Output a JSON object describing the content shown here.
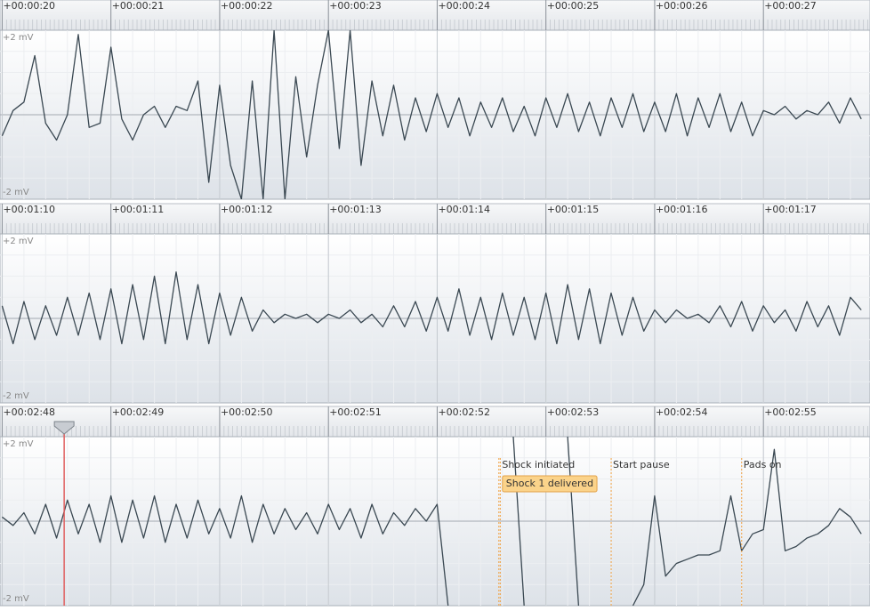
{
  "chart_data": [
    {
      "type": "line",
      "color": "#3a4852",
      "xlim": [
        19.98,
        27.98
      ],
      "ylim": [
        -2,
        2
      ],
      "xticks": [
        {
          "value": 20,
          "label": "+00:00:20"
        },
        {
          "value": 21,
          "label": "+00:00:21"
        },
        {
          "value": 22,
          "label": "+00:00:22"
        },
        {
          "value": 23,
          "label": "+00:00:23"
        },
        {
          "value": 24,
          "label": "+00:00:24"
        },
        {
          "value": 25,
          "label": "+00:00:25"
        },
        {
          "value": 26,
          "label": "+00:00:26"
        },
        {
          "value": 27,
          "label": "+00:00:27"
        }
      ],
      "yticks": [
        {
          "value": 2,
          "label": "+2 mV"
        },
        {
          "value": -2,
          "label": "-2 mV"
        }
      ],
      "x": [
        20.0,
        20.1,
        20.2,
        20.3,
        20.4,
        20.5,
        20.6,
        20.7,
        20.8,
        20.9,
        21.0,
        21.1,
        21.2,
        21.3,
        21.4,
        21.5,
        21.6,
        21.7,
        21.8,
        21.9,
        22.0,
        22.1,
        22.2,
        22.3,
        22.4,
        22.5,
        22.6,
        22.7,
        22.8,
        22.9,
        23.0,
        23.1,
        23.2,
        23.3,
        23.4,
        23.5,
        23.6,
        23.7,
        23.8,
        23.9,
        24.0,
        24.1,
        24.2,
        24.3,
        24.4,
        24.5,
        24.6,
        24.7,
        24.8,
        24.9,
        25.0,
        25.1,
        25.2,
        25.3,
        25.4,
        25.5,
        25.6,
        25.7,
        25.8,
        25.9,
        26.0,
        26.1,
        26.2,
        26.3,
        26.4,
        26.5,
        26.6,
        26.7,
        26.8,
        26.9,
        27.0,
        27.1,
        27.2,
        27.3,
        27.4,
        27.5,
        27.6,
        27.7,
        27.8,
        27.9
      ],
      "values": [
        -0.5,
        0.1,
        0.3,
        1.4,
        -0.2,
        -0.6,
        0.0,
        1.9,
        -0.3,
        -0.2,
        1.6,
        -0.1,
        -0.6,
        0.0,
        0.2,
        -0.3,
        0.2,
        0.1,
        0.8,
        -1.6,
        0.7,
        -1.2,
        -2.0,
        0.8,
        -2.0,
        2.0,
        -2.0,
        0.9,
        -1.0,
        0.7,
        2.0,
        -0.8,
        2.0,
        -1.2,
        0.8,
        -0.5,
        0.7,
        -0.6,
        0.4,
        -0.4,
        0.5,
        -0.3,
        0.4,
        -0.5,
        0.3,
        -0.3,
        0.4,
        -0.4,
        0.2,
        -0.5,
        0.4,
        -0.3,
        0.5,
        -0.4,
        0.3,
        -0.5,
        0.4,
        -0.3,
        0.5,
        -0.4,
        0.3,
        -0.4,
        0.5,
        -0.5,
        0.4,
        -0.3,
        0.5,
        -0.4,
        0.3,
        -0.5,
        0.1,
        0.0,
        0.2,
        -0.1,
        0.1,
        0.0,
        0.3,
        -0.2,
        0.4,
        -0.1
      ]
    },
    {
      "type": "line",
      "color": "#3a4852",
      "xlim": [
        69.98,
        77.98
      ],
      "ylim": [
        -2,
        2
      ],
      "xticks": [
        {
          "value": 70,
          "label": "+00:01:10"
        },
        {
          "value": 71,
          "label": "+00:01:11"
        },
        {
          "value": 72,
          "label": "+00:01:12"
        },
        {
          "value": 73,
          "label": "+00:01:13"
        },
        {
          "value": 74,
          "label": "+00:01:14"
        },
        {
          "value": 75,
          "label": "+00:01:15"
        },
        {
          "value": 76,
          "label": "+00:01:16"
        },
        {
          "value": 77,
          "label": "+00:01:17"
        }
      ],
      "yticks": [
        {
          "value": 2,
          "label": "+2 mV"
        },
        {
          "value": -2,
          "label": "-2 mV"
        }
      ],
      "x": [
        70.0,
        70.1,
        70.2,
        70.3,
        70.4,
        70.5,
        70.6,
        70.7,
        70.8,
        70.9,
        71.0,
        71.1,
        71.2,
        71.3,
        71.4,
        71.5,
        71.6,
        71.7,
        71.8,
        71.9,
        72.0,
        72.1,
        72.2,
        72.3,
        72.4,
        72.5,
        72.6,
        72.7,
        72.8,
        72.9,
        73.0,
        73.1,
        73.2,
        73.3,
        73.4,
        73.5,
        73.6,
        73.7,
        73.8,
        73.9,
        74.0,
        74.1,
        74.2,
        74.3,
        74.4,
        74.5,
        74.6,
        74.7,
        74.8,
        74.9,
        75.0,
        75.1,
        75.2,
        75.3,
        75.4,
        75.5,
        75.6,
        75.7,
        75.8,
        75.9,
        76.0,
        76.1,
        76.2,
        76.3,
        76.4,
        76.5,
        76.6,
        76.7,
        76.8,
        76.9,
        77.0,
        77.1,
        77.2,
        77.3,
        77.4,
        77.5,
        77.6,
        77.7,
        77.8,
        77.9
      ],
      "values": [
        0.3,
        -0.6,
        0.4,
        -0.5,
        0.3,
        -0.4,
        0.5,
        -0.4,
        0.6,
        -0.5,
        0.7,
        -0.6,
        0.8,
        -0.5,
        1.0,
        -0.6,
        1.1,
        -0.5,
        0.8,
        -0.6,
        0.6,
        -0.4,
        0.5,
        -0.3,
        0.2,
        -0.1,
        0.1,
        0.0,
        0.1,
        -0.1,
        0.1,
        0.0,
        0.2,
        -0.1,
        0.1,
        -0.2,
        0.3,
        -0.2,
        0.4,
        -0.3,
        0.5,
        -0.3,
        0.7,
        -0.4,
        0.5,
        -0.5,
        0.6,
        -0.4,
        0.5,
        -0.5,
        0.6,
        -0.6,
        0.8,
        -0.5,
        0.7,
        -0.6,
        0.6,
        -0.4,
        0.5,
        -0.3,
        0.2,
        -0.1,
        0.2,
        0.0,
        0.1,
        -0.1,
        0.3,
        -0.2,
        0.4,
        -0.3,
        0.3,
        -0.1,
        0.2,
        -0.3,
        0.4,
        -0.2,
        0.3,
        -0.4,
        0.5,
        0.2
      ]
    },
    {
      "type": "line",
      "color": "#3a4852",
      "xlim": [
        167.98,
        175.98
      ],
      "ylim": [
        -2,
        2
      ],
      "xticks": [
        {
          "value": 168,
          "label": "+00:02:48"
        },
        {
          "value": 169,
          "label": "+00:02:49"
        },
        {
          "value": 170,
          "label": "+00:02:50"
        },
        {
          "value": 171,
          "label": "+00:02:51"
        },
        {
          "value": 172,
          "label": "+00:02:52"
        },
        {
          "value": 173,
          "label": "+00:02:53"
        },
        {
          "value": 174,
          "label": "+00:02:54"
        },
        {
          "value": 175,
          "label": "+00:02:55"
        }
      ],
      "yticks": [
        {
          "value": 2,
          "label": "+2 mV"
        },
        {
          "value": -2,
          "label": "-2 mV"
        }
      ],
      "cursor_x": 168.57,
      "markers": [
        {
          "text": "Shock initiated",
          "x": 172.58
        },
        {
          "text": "Start pause",
          "x": 173.6
        },
        {
          "text": "Pads on",
          "x": 174.8
        }
      ],
      "events": [
        {
          "text": "Shock 1 delivered",
          "x": 172.6
        }
      ],
      "x": [
        168.0,
        168.1,
        168.2,
        168.3,
        168.4,
        168.5,
        168.6,
        168.7,
        168.8,
        168.9,
        169.0,
        169.1,
        169.2,
        169.3,
        169.4,
        169.5,
        169.6,
        169.7,
        169.8,
        169.9,
        170.0,
        170.1,
        170.2,
        170.3,
        170.4,
        170.5,
        170.6,
        170.7,
        170.8,
        170.9,
        171.0,
        171.1,
        171.2,
        171.3,
        171.4,
        171.5,
        171.6,
        171.7,
        171.8,
        171.9,
        172.0,
        172.1,
        172.2,
        172.3,
        172.4,
        172.5,
        172.6,
        172.7,
        172.8,
        172.9,
        173.0,
        173.1,
        173.2,
        173.3,
        173.4,
        173.5,
        173.6,
        173.7,
        173.8,
        173.9,
        174.0,
        174.1,
        174.2,
        174.3,
        174.4,
        174.5,
        174.6,
        174.7,
        174.8,
        174.9,
        175.0,
        175.1,
        175.2,
        175.3,
        175.4,
        175.5,
        175.6,
        175.7,
        175.8,
        175.9
      ],
      "values": [
        0.1,
        -0.1,
        0.2,
        -0.3,
        0.4,
        -0.4,
        0.5,
        -0.3,
        0.4,
        -0.5,
        0.6,
        -0.5,
        0.5,
        -0.4,
        0.6,
        -0.5,
        0.4,
        -0.4,
        0.5,
        -0.3,
        0.3,
        -0.4,
        0.6,
        -0.5,
        0.4,
        -0.3,
        0.3,
        -0.2,
        0.2,
        -0.3,
        0.4,
        -0.2,
        0.3,
        -0.4,
        0.4,
        -0.3,
        0.2,
        -0.1,
        0.3,
        0.0,
        0.4,
        -2.0,
        null,
        null,
        null,
        null,
        null,
        2.0,
        -2.0,
        null,
        null,
        null,
        2.0,
        -2.0,
        null,
        null,
        null,
        null,
        -2.0,
        -1.5,
        0.6,
        -1.3,
        -1.0,
        -0.9,
        -0.8,
        -0.8,
        -0.7,
        0.6,
        -0.7,
        -0.3,
        -0.2,
        1.7,
        -0.7,
        -0.6,
        -0.4,
        -0.3,
        -0.1,
        0.3,
        0.1,
        -0.3
      ]
    }
  ]
}
